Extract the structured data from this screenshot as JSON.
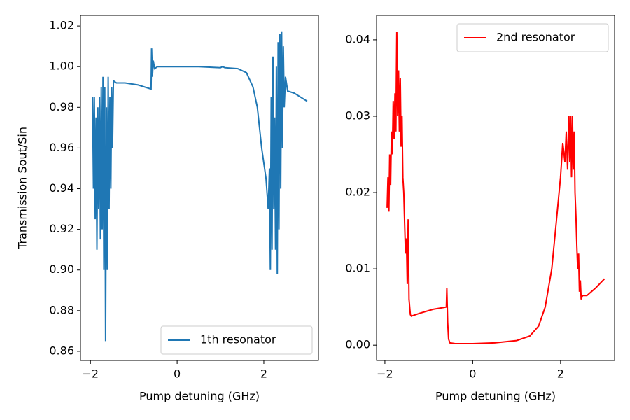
{
  "chart_data": [
    {
      "type": "line",
      "xlabel": "Pump detuning (GHz)",
      "ylabel": "Transmission Sout/Sin",
      "xlim": [
        -2.23,
        3.26
      ],
      "ylim": [
        0.8555,
        1.0252
      ],
      "xticks": [
        {
          "value": -2,
          "label": "−2"
        },
        0,
        2
      ],
      "yticks": [
        0.86,
        0.88,
        {
          "value": 0.9,
          "label": "0.90"
        },
        0.92,
        0.94,
        0.96,
        0.98,
        {
          "value": 1.0,
          "label": "1.00"
        },
        1.02
      ],
      "legend": "lower right",
      "grid": false,
      "series": [
        {
          "name": "1th resonator",
          "color": "#1f77b4",
          "x": [
            -1.95,
            -1.93,
            -1.91,
            -1.89,
            -1.87,
            -1.85,
            -1.83,
            -1.81,
            -1.79,
            -1.77,
            -1.75,
            -1.73,
            -1.71,
            -1.69,
            -1.67,
            -1.65,
            -1.63,
            -1.61,
            -1.59,
            -1.57,
            -1.55,
            -1.53,
            -1.51,
            -1.49,
            -1.47,
            -1.4,
            -1.2,
            -0.9,
            -0.6,
            -0.59,
            -0.57,
            -0.55,
            -0.52,
            -0.45,
            0,
            0.5,
            1.0,
            1.05,
            1.1,
            1.4,
            1.6,
            1.75,
            1.85,
            1.95,
            2.05,
            2.1,
            2.13,
            2.15,
            2.17,
            2.19,
            2.21,
            2.23,
            2.25,
            2.27,
            2.29,
            2.31,
            2.33,
            2.35,
            2.37,
            2.39,
            2.41,
            2.43,
            2.45,
            2.47,
            2.5,
            2.55,
            2.7,
            3.0
          ],
          "values": [
            0.985,
            0.94,
            0.985,
            0.925,
            0.975,
            0.91,
            0.98,
            0.93,
            0.985,
            0.915,
            0.99,
            0.92,
            0.995,
            0.9,
            0.99,
            0.865,
            0.98,
            0.9,
            0.995,
            0.93,
            0.985,
            0.94,
            0.99,
            0.96,
            0.993,
            0.992,
            0.992,
            0.991,
            0.989,
            1.009,
            0.995,
            1.003,
            0.999,
            1.0,
            1.0,
            1.0,
            0.9995,
            1.0,
            0.9995,
            0.999,
            0.997,
            0.99,
            0.98,
            0.96,
            0.945,
            0.93,
            0.95,
            0.9,
            0.985,
            0.91,
            1.005,
            0.93,
            0.975,
            0.91,
            1.0,
            0.898,
            1.012,
            0.92,
            1.016,
            0.94,
            1.017,
            0.96,
            1.01,
            0.98,
            0.995,
            0.988,
            0.987,
            0.983
          ]
        }
      ]
    },
    {
      "type": "line",
      "xlabel": "Pump detuning (GHz)",
      "xlim": [
        -2.19,
        3.23
      ],
      "ylim": [
        -0.002,
        0.0432
      ],
      "xticks": [
        {
          "value": -2,
          "label": "−2"
        },
        0,
        2
      ],
      "yticks": [
        {
          "value": 0,
          "label": "0.00"
        },
        0.01,
        0.02,
        0.03,
        0.04
      ],
      "legend": "upper right",
      "grid": false,
      "series": [
        {
          "name": "2nd resonator",
          "color": "red",
          "x": [
            -1.95,
            -1.93,
            -1.91,
            -1.89,
            -1.87,
            -1.85,
            -1.83,
            -1.81,
            -1.79,
            -1.77,
            -1.75,
            -1.73,
            -1.71,
            -1.69,
            -1.67,
            -1.65,
            -1.63,
            -1.61,
            -1.59,
            -1.57,
            -1.55,
            -1.53,
            -1.51,
            -1.49,
            -1.47,
            -1.45,
            -1.42,
            -1.4,
            -1.2,
            -0.9,
            -0.6,
            -0.59,
            -0.57,
            -0.55,
            -0.52,
            -0.4,
            0,
            0.5,
            1.0,
            1.3,
            1.5,
            1.65,
            1.8,
            1.9,
            2.0,
            2.05,
            2.1,
            2.13,
            2.16,
            2.19,
            2.21,
            2.23,
            2.25,
            2.27,
            2.29,
            2.31,
            2.33,
            2.35,
            2.37,
            2.39,
            2.41,
            2.43,
            2.45,
            2.47,
            2.5,
            2.6,
            2.8,
            3.0
          ],
          "values": [
            0.018,
            0.022,
            0.0175,
            0.025,
            0.021,
            0.028,
            0.025,
            0.032,
            0.027,
            0.033,
            0.028,
            0.041,
            0.03,
            0.036,
            0.028,
            0.035,
            0.026,
            0.03,
            0.022,
            0.02,
            0.016,
            0.012,
            0.014,
            0.008,
            0.0165,
            0.006,
            0.004,
            0.0038,
            0.0042,
            0.0047,
            0.005,
            0.0075,
            0.003,
            0.0008,
            0.0003,
            0.0002,
            0.0002,
            0.0003,
            0.0006,
            0.0012,
            0.0025,
            0.005,
            0.01,
            0.016,
            0.022,
            0.0265,
            0.024,
            0.028,
            0.023,
            0.03,
            0.024,
            0.03,
            0.022,
            0.03,
            0.023,
            0.028,
            0.02,
            0.017,
            0.013,
            0.01,
            0.012,
            0.007,
            0.0085,
            0.006,
            0.0065,
            0.0065,
            0.0075,
            0.0087
          ]
        }
      ]
    }
  ]
}
